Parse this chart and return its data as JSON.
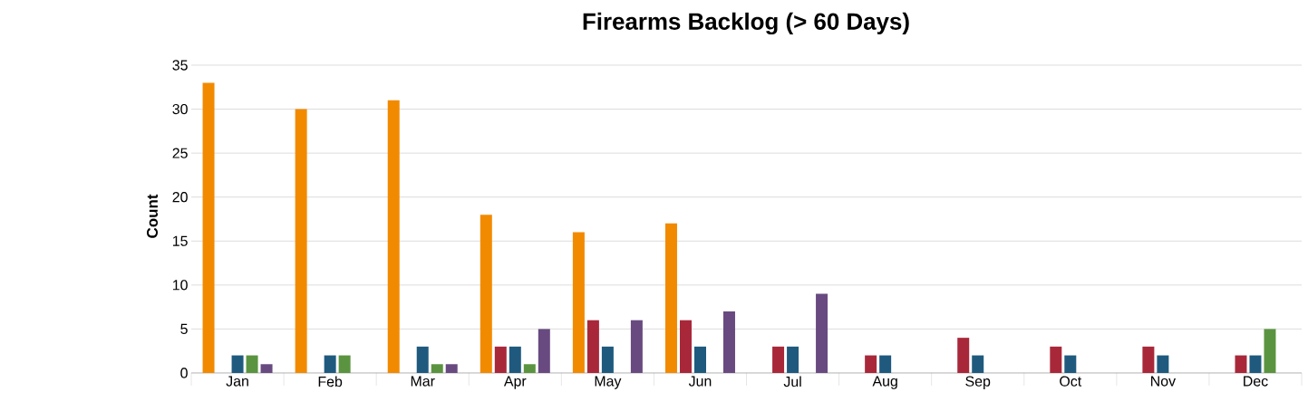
{
  "chart_data": {
    "type": "bar",
    "title": "Firearms Backlog (> 60 Days)",
    "ylabel": "Count",
    "categories": [
      "Jan",
      "Feb",
      "Mar",
      "Apr",
      "May",
      "Jun",
      "Jul",
      "Aug",
      "Sep",
      "Oct",
      "Nov",
      "Dec"
    ],
    "series": [
      {
        "color": "#f28a00",
        "values": [
          33,
          30,
          31,
          18,
          16,
          17,
          null,
          null,
          null,
          null,
          null,
          null
        ]
      },
      {
        "color": "#a8283a",
        "values": [
          null,
          null,
          null,
          3,
          6,
          6,
          3,
          2,
          4,
          3,
          3,
          2
        ]
      },
      {
        "color": "#1f5a7e",
        "values": [
          2,
          2,
          3,
          3,
          3,
          3,
          3,
          2,
          2,
          2,
          2,
          2
        ]
      },
      {
        "color": "#5b9440",
        "values": [
          2,
          2,
          1,
          1,
          null,
          null,
          null,
          null,
          null,
          null,
          null,
          5
        ]
      },
      {
        "color": "#684a80",
        "values": [
          1,
          null,
          1,
          5,
          6,
          7,
          9,
          null,
          null,
          null,
          null,
          null
        ]
      }
    ],
    "ylim": [
      0,
      35
    ],
    "yticks": [
      0,
      5,
      10,
      15,
      20,
      25,
      30,
      35
    ],
    "grid": "y"
  }
}
